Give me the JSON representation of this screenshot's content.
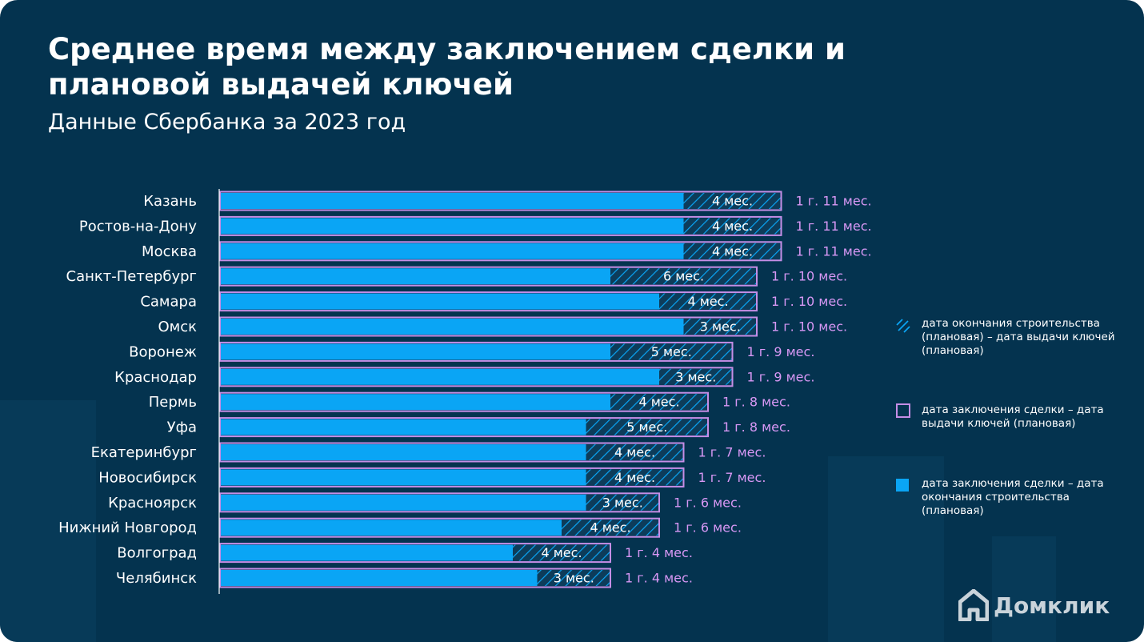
{
  "header": {
    "title": "Среднее время между заключением сделки и плановой выдачей ключей",
    "subtitle": "Данные Сбербанка за 2023 год"
  },
  "colors": {
    "background": "#04334f",
    "construction": "#0aa5f5",
    "outline": "#c58ee6",
    "total_label": "#d898f5",
    "hatch": "#0aa5f5"
  },
  "chart_data": {
    "type": "bar",
    "orientation": "horizontal",
    "stacked": true,
    "unit": "months",
    "categories": [
      "Казань",
      "Ростов-на-Дону",
      "Москва",
      "Санкт-Петербург",
      "Самара",
      "Омск",
      "Воронеж",
      "Краснодар",
      "Пермь",
      "Уфа",
      "Екатеринбург",
      "Новосибирск",
      "Красноярск",
      "Нижний Новгород",
      "Волгоград",
      "Челябинск"
    ],
    "series": [
      {
        "name": "дата заключения сделки – дата окончания строительства (плановая)",
        "values": [
          19,
          19,
          19,
          16,
          18,
          19,
          16,
          18,
          16,
          15,
          15,
          15,
          15,
          14,
          12,
          13
        ]
      },
      {
        "name": "дата окончания строительства (плановая) – дата выдачи ключей (плановая)",
        "values": [
          4,
          4,
          4,
          6,
          4,
          3,
          5,
          3,
          4,
          5,
          4,
          4,
          3,
          4,
          4,
          3
        ]
      }
    ],
    "totals": [
      23,
      23,
      23,
      22,
      22,
      22,
      21,
      21,
      20,
      20,
      19,
      19,
      18,
      18,
      16,
      16
    ],
    "segment_labels": [
      "4 мес.",
      "4 мес.",
      "4 мес.",
      "6 мес.",
      "4 мес.",
      "3 мес.",
      "5 мес.",
      "3 мес.",
      "4 мес.",
      "5 мес.",
      "4 мес.",
      "4 мес.",
      "3 мес.",
      "4 мес.",
      "4 мес.",
      "3 мес."
    ],
    "total_labels": [
      "1 г. 11 мес.",
      "1 г. 11 мес.",
      "1 г. 11 мес.",
      "1 г. 10 мес.",
      "1 г. 10 мес.",
      "1 г. 10 мес.",
      "1 г. 9 мес.",
      "1 г. 9 мес.",
      "1 г. 8 мес.",
      "1 г. 8 мес.",
      "1 г. 7 мес.",
      "1 г. 7 мес.",
      "1 г. 6 мес.",
      "1 г. 6 мес.",
      "1 г. 4 мес.",
      "1 г. 4 мес."
    ],
    "xlim": [
      0,
      23
    ],
    "grid": false,
    "legend_position": "right"
  },
  "legend": {
    "items": [
      {
        "swatch": "hatch",
        "label": "дата окончания строительства (плановая) – дата выдачи ключей (плановая)"
      },
      {
        "swatch": "outline",
        "label": "дата заключения сделки – дата выдачи ключей (плановая)"
      },
      {
        "swatch": "solid",
        "label": "дата заключения сделки – дата окончания строительства (плановая)"
      }
    ]
  },
  "brand": {
    "name": "Домклик",
    "icon": "house-icon"
  }
}
